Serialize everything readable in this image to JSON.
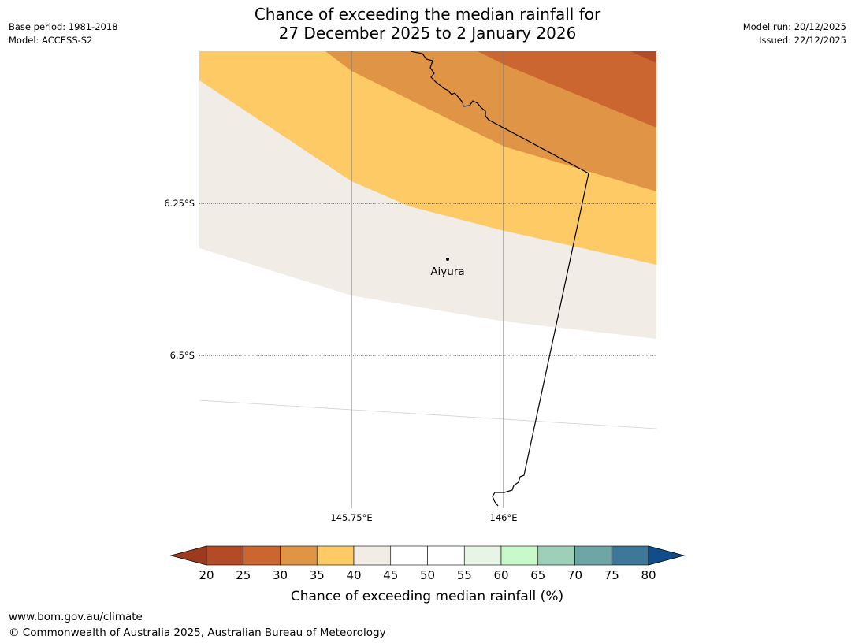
{
  "title": {
    "line1": "Chance of exceeding the median rainfall for",
    "line2": "27 December 2025 to 2 January 2026"
  },
  "meta": {
    "base_period": "Base period: 1981-2018",
    "model": "Model: ACCESS-S2",
    "model_run": "Model run: 20/12/2025",
    "issued": "Issued: 22/12/2025"
  },
  "map": {
    "lat_labels": [
      "6.25°S",
      "6.5°S"
    ],
    "lon_labels": [
      "145.75°E",
      "146°E"
    ],
    "place": "Aiyura"
  },
  "colorbar": {
    "title": "Chance of exceeding median rainfall (%)",
    "ticks": [
      "20",
      "25",
      "30",
      "35",
      "40",
      "45",
      "50",
      "55",
      "60",
      "65",
      "70",
      "75",
      "80"
    ],
    "colors": [
      "#9c3a20",
      "#b34b26",
      "#cc6630",
      "#e09445",
      "#fdca65",
      "#f1ece6",
      "#ffffff",
      "#ffffff",
      "#e6f5e6",
      "#c8f9c8",
      "#9ecfb8",
      "#6ea6a6",
      "#3f7799",
      "#114d88"
    ],
    "low_end_color": "#9c3a20",
    "high_end_color": "#114d88"
  },
  "footer": {
    "url": "www.bom.gov.au/climate",
    "copyright": "© Commonwealth of Australia 2025, Australian Bureau of Meteorology"
  }
}
